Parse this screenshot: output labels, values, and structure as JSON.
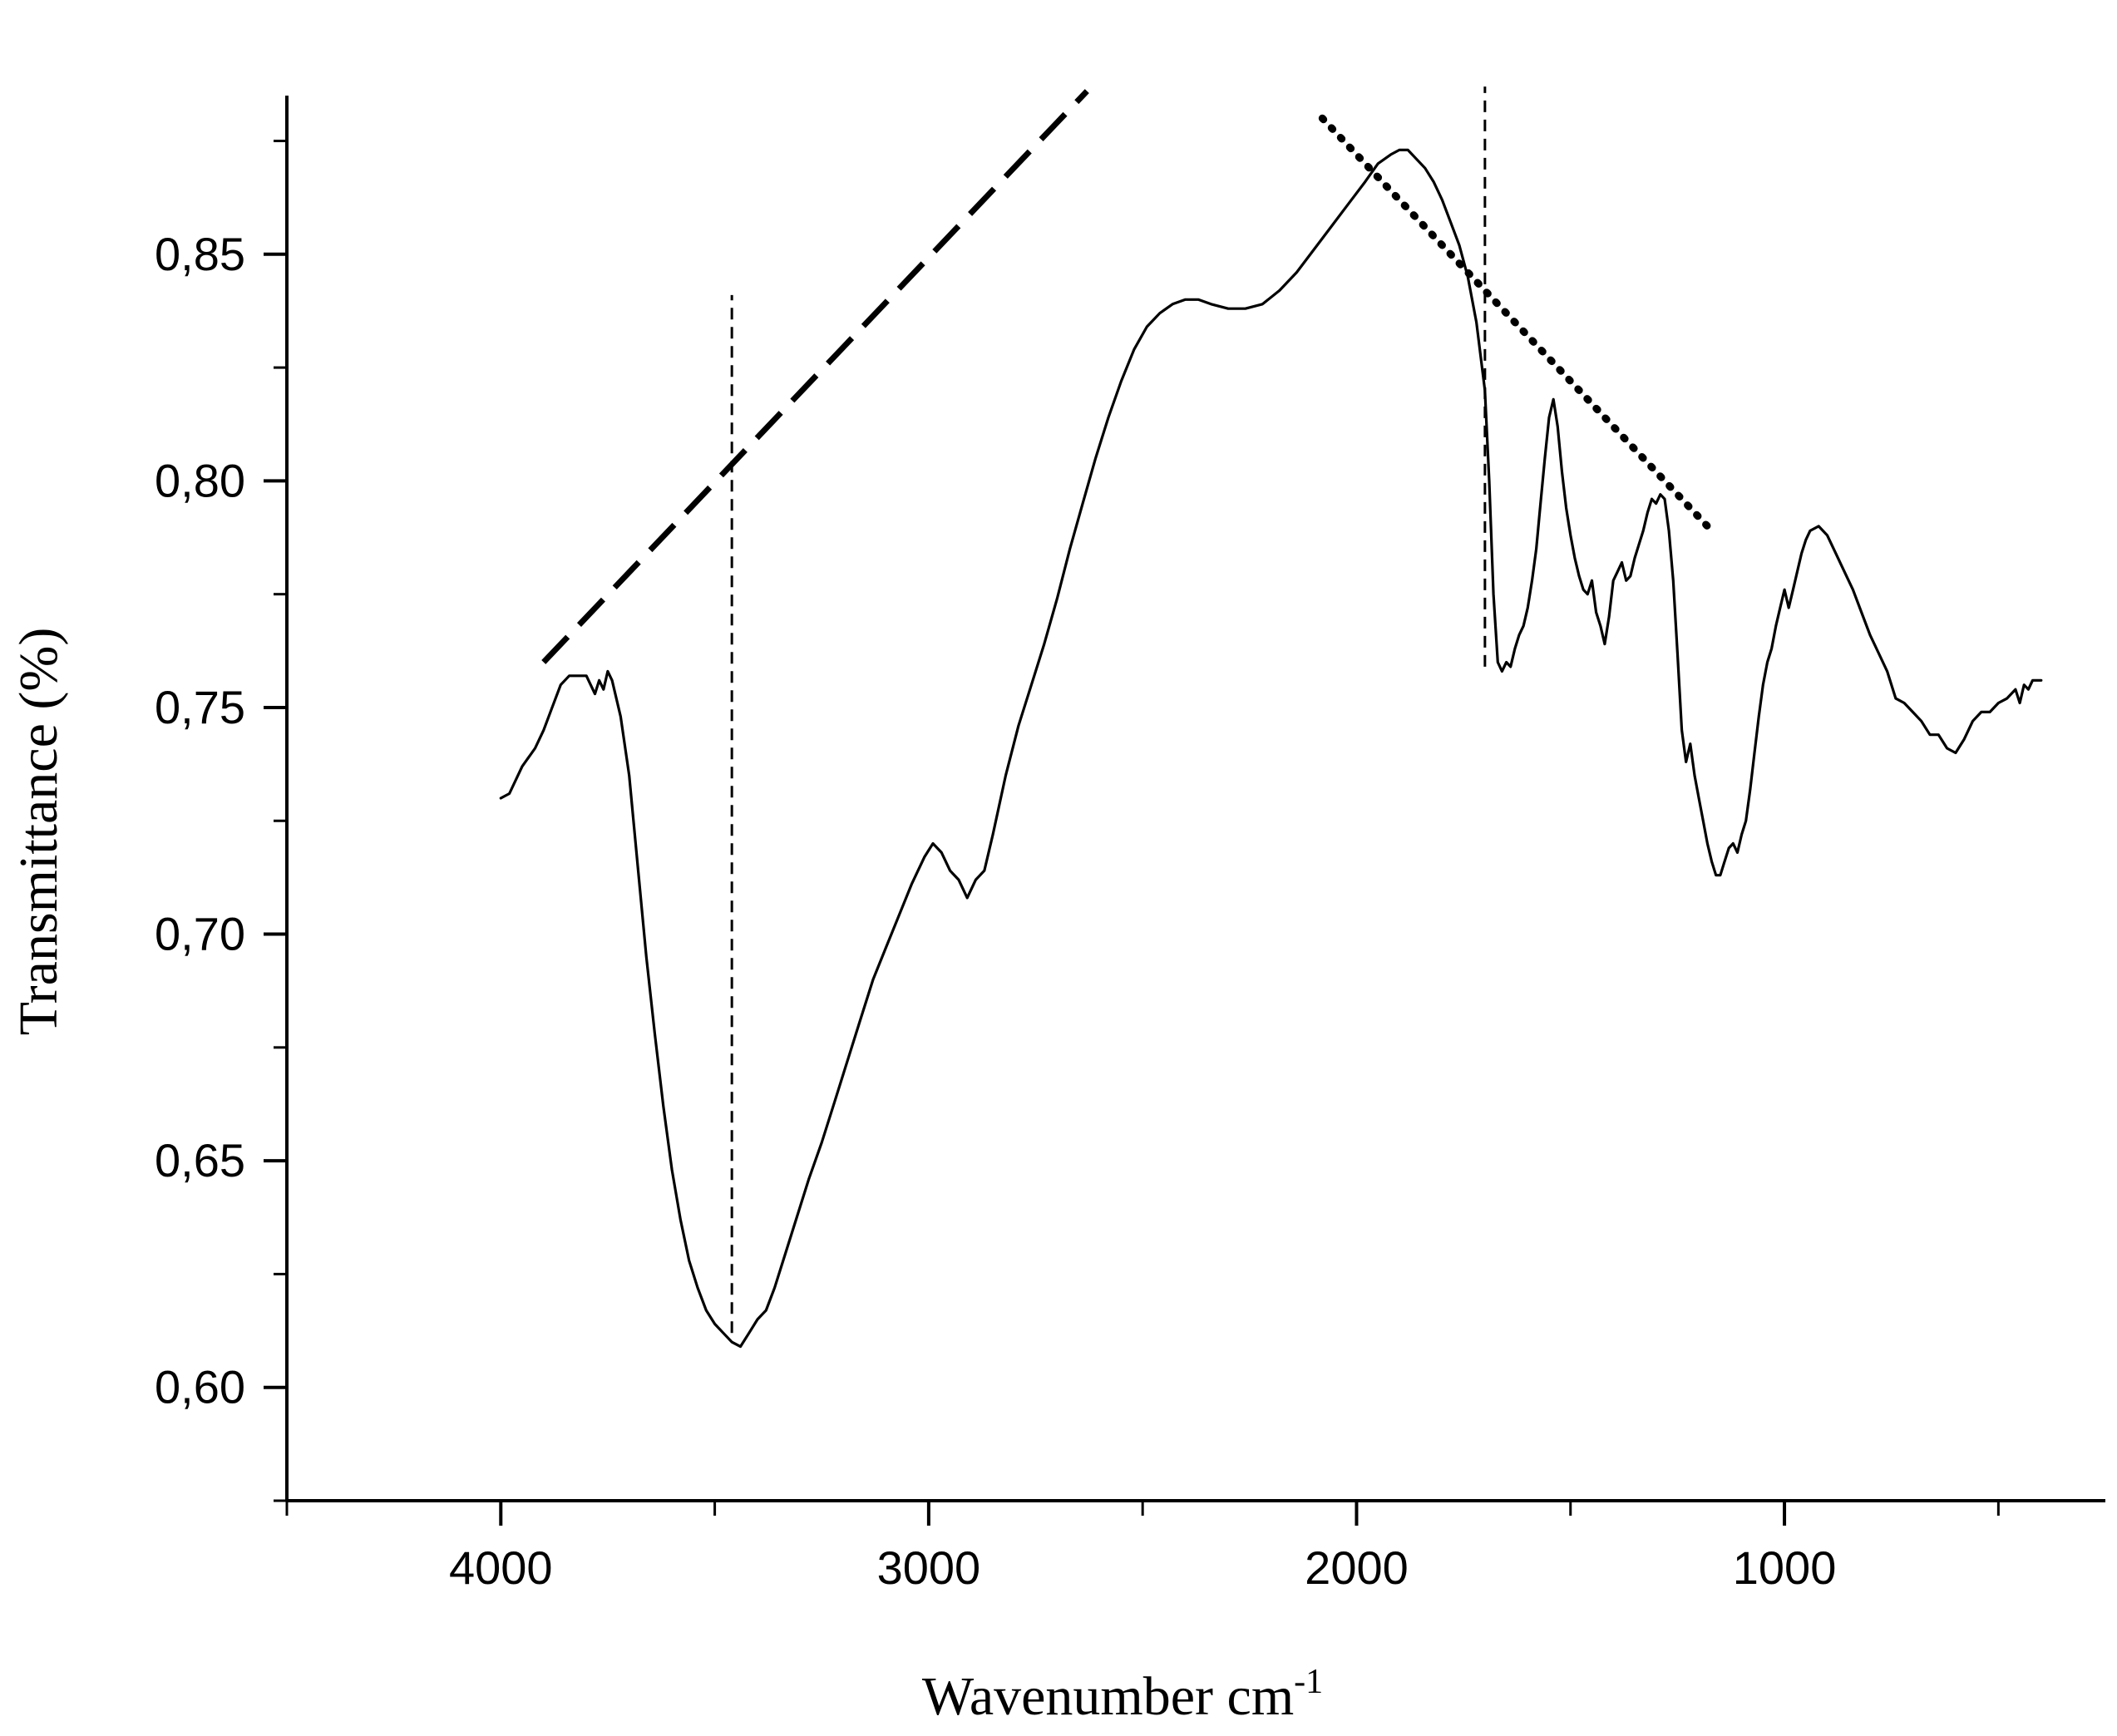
{
  "chart_data": {
    "type": "line",
    "title": "",
    "xlabel": "Wavenumber cm",
    "xlabel_superscript": "-1",
    "ylabel": "Transmittance (%)",
    "xlim": [
      4500,
      250
    ],
    "ylim": [
      0.575,
      0.885
    ],
    "x_reversed": true,
    "grid": false,
    "legend": "none",
    "line_color": "#000000",
    "x_ticks": [
      {
        "value": 4000,
        "label": "4000"
      },
      {
        "value": 3000,
        "label": "3000"
      },
      {
        "value": 2000,
        "label": "2000"
      },
      {
        "value": 1000,
        "label": "1000"
      }
    ],
    "x_minor_ticks": [
      4500,
      3500,
      2500,
      1500,
      500
    ],
    "y_ticks": [
      {
        "value": 0.6,
        "label": "0,60"
      },
      {
        "value": 0.65,
        "label": "0,65"
      },
      {
        "value": 0.7,
        "label": "0,70"
      },
      {
        "value": 0.75,
        "label": "0,75"
      },
      {
        "value": 0.8,
        "label": "0,80"
      },
      {
        "value": 0.85,
        "label": "0,85"
      }
    ],
    "y_minor_ticks": [
      0.575,
      0.625,
      0.675,
      0.725,
      0.775,
      0.825,
      0.875
    ],
    "series": [
      {
        "points": [
          [
            4000,
            0.73
          ],
          [
            3980,
            0.731
          ],
          [
            3950,
            0.737
          ],
          [
            3920,
            0.741
          ],
          [
            3900,
            0.745
          ],
          [
            3880,
            0.75
          ],
          [
            3860,
            0.755
          ],
          [
            3840,
            0.757
          ],
          [
            3820,
            0.757
          ],
          [
            3800,
            0.757
          ],
          [
            3780,
            0.753
          ],
          [
            3770,
            0.756
          ],
          [
            3760,
            0.754
          ],
          [
            3750,
            0.758
          ],
          [
            3740,
            0.756
          ],
          [
            3720,
            0.748
          ],
          [
            3700,
            0.735
          ],
          [
            3680,
            0.715
          ],
          [
            3660,
            0.695
          ],
          [
            3640,
            0.678
          ],
          [
            3620,
            0.662
          ],
          [
            3600,
            0.648
          ],
          [
            3580,
            0.637
          ],
          [
            3560,
            0.628
          ],
          [
            3540,
            0.622
          ],
          [
            3520,
            0.617
          ],
          [
            3500,
            0.614
          ],
          [
            3480,
            0.612
          ],
          [
            3460,
            0.61
          ],
          [
            3440,
            0.609
          ],
          [
            3420,
            0.612
          ],
          [
            3400,
            0.615
          ],
          [
            3380,
            0.617
          ],
          [
            3360,
            0.622
          ],
          [
            3340,
            0.628
          ],
          [
            3320,
            0.634
          ],
          [
            3300,
            0.64
          ],
          [
            3280,
            0.646
          ],
          [
            3250,
            0.654
          ],
          [
            3220,
            0.663
          ],
          [
            3190,
            0.672
          ],
          [
            3160,
            0.681
          ],
          [
            3130,
            0.69
          ],
          [
            3100,
            0.697
          ],
          [
            3070,
            0.704
          ],
          [
            3040,
            0.711
          ],
          [
            3010,
            0.717
          ],
          [
            2990,
            0.72
          ],
          [
            2970,
            0.718
          ],
          [
            2950,
            0.714
          ],
          [
            2930,
            0.712
          ],
          [
            2910,
            0.708
          ],
          [
            2890,
            0.712
          ],
          [
            2870,
            0.714
          ],
          [
            2850,
            0.722
          ],
          [
            2820,
            0.735
          ],
          [
            2790,
            0.746
          ],
          [
            2760,
            0.755
          ],
          [
            2730,
            0.764
          ],
          [
            2700,
            0.774
          ],
          [
            2670,
            0.785
          ],
          [
            2640,
            0.795
          ],
          [
            2610,
            0.805
          ],
          [
            2580,
            0.814
          ],
          [
            2550,
            0.822
          ],
          [
            2520,
            0.829
          ],
          [
            2490,
            0.834
          ],
          [
            2460,
            0.837
          ],
          [
            2430,
            0.839
          ],
          [
            2400,
            0.84
          ],
          [
            2370,
            0.84
          ],
          [
            2340,
            0.839
          ],
          [
            2300,
            0.838
          ],
          [
            2260,
            0.838
          ],
          [
            2220,
            0.839
          ],
          [
            2180,
            0.842
          ],
          [
            2140,
            0.846
          ],
          [
            2100,
            0.851
          ],
          [
            2060,
            0.856
          ],
          [
            2020,
            0.861
          ],
          [
            1980,
            0.866
          ],
          [
            1950,
            0.87
          ],
          [
            1920,
            0.872
          ],
          [
            1900,
            0.873
          ],
          [
            1880,
            0.873
          ],
          [
            1860,
            0.871
          ],
          [
            1840,
            0.869
          ],
          [
            1820,
            0.866
          ],
          [
            1800,
            0.862
          ],
          [
            1780,
            0.857
          ],
          [
            1760,
            0.852
          ],
          [
            1740,
            0.845
          ],
          [
            1720,
            0.835
          ],
          [
            1700,
            0.82
          ],
          [
            1690,
            0.8
          ],
          [
            1680,
            0.775
          ],
          [
            1670,
            0.76
          ],
          [
            1660,
            0.758
          ],
          [
            1650,
            0.76
          ],
          [
            1640,
            0.759
          ],
          [
            1630,
            0.763
          ],
          [
            1620,
            0.766
          ],
          [
            1610,
            0.768
          ],
          [
            1600,
            0.772
          ],
          [
            1590,
            0.778
          ],
          [
            1580,
            0.785
          ],
          [
            1570,
            0.795
          ],
          [
            1560,
            0.805
          ],
          [
            1550,
            0.814
          ],
          [
            1540,
            0.818
          ],
          [
            1530,
            0.812
          ],
          [
            1520,
            0.802
          ],
          [
            1510,
            0.794
          ],
          [
            1500,
            0.788
          ],
          [
            1490,
            0.783
          ],
          [
            1480,
            0.779
          ],
          [
            1470,
            0.776
          ],
          [
            1460,
            0.775
          ],
          [
            1450,
            0.778
          ],
          [
            1440,
            0.771
          ],
          [
            1430,
            0.768
          ],
          [
            1420,
            0.764
          ],
          [
            1410,
            0.77
          ],
          [
            1400,
            0.778
          ],
          [
            1390,
            0.78
          ],
          [
            1380,
            0.782
          ],
          [
            1370,
            0.778
          ],
          [
            1360,
            0.779
          ],
          [
            1350,
            0.783
          ],
          [
            1340,
            0.786
          ],
          [
            1330,
            0.789
          ],
          [
            1320,
            0.793
          ],
          [
            1310,
            0.796
          ],
          [
            1300,
            0.795
          ],
          [
            1290,
            0.797
          ],
          [
            1280,
            0.796
          ],
          [
            1270,
            0.789
          ],
          [
            1260,
            0.778
          ],
          [
            1250,
            0.762
          ],
          [
            1240,
            0.745
          ],
          [
            1230,
            0.738
          ],
          [
            1220,
            0.742
          ],
          [
            1210,
            0.735
          ],
          [
            1200,
            0.73
          ],
          [
            1190,
            0.725
          ],
          [
            1180,
            0.72
          ],
          [
            1170,
            0.716
          ],
          [
            1160,
            0.713
          ],
          [
            1150,
            0.713
          ],
          [
            1140,
            0.716
          ],
          [
            1130,
            0.719
          ],
          [
            1120,
            0.72
          ],
          [
            1110,
            0.718
          ],
          [
            1100,
            0.722
          ],
          [
            1090,
            0.725
          ],
          [
            1080,
            0.732
          ],
          [
            1070,
            0.74
          ],
          [
            1060,
            0.748
          ],
          [
            1050,
            0.755
          ],
          [
            1040,
            0.76
          ],
          [
            1030,
            0.763
          ],
          [
            1020,
            0.768
          ],
          [
            1010,
            0.772
          ],
          [
            1000,
            0.776
          ],
          [
            990,
            0.772
          ],
          [
            980,
            0.776
          ],
          [
            970,
            0.78
          ],
          [
            960,
            0.784
          ],
          [
            950,
            0.787
          ],
          [
            940,
            0.789
          ],
          [
            920,
            0.79
          ],
          [
            900,
            0.788
          ],
          [
            880,
            0.784
          ],
          [
            860,
            0.78
          ],
          [
            840,
            0.776
          ],
          [
            820,
            0.771
          ],
          [
            800,
            0.766
          ],
          [
            780,
            0.762
          ],
          [
            760,
            0.758
          ],
          [
            740,
            0.752
          ],
          [
            720,
            0.751
          ],
          [
            700,
            0.749
          ],
          [
            680,
            0.747
          ],
          [
            660,
            0.744
          ],
          [
            640,
            0.744
          ],
          [
            620,
            0.741
          ],
          [
            600,
            0.74
          ],
          [
            580,
            0.743
          ],
          [
            560,
            0.747
          ],
          [
            540,
            0.749
          ],
          [
            520,
            0.749
          ],
          [
            500,
            0.751
          ],
          [
            480,
            0.752
          ],
          [
            460,
            0.754
          ],
          [
            450,
            0.751
          ],
          [
            440,
            0.755
          ],
          [
            430,
            0.754
          ],
          [
            420,
            0.756
          ],
          [
            400,
            0.756
          ]
        ]
      }
    ],
    "annotations": [
      {
        "kind": "dashed-line",
        "x1": 3900,
        "y1": 0.76,
        "x2": 2630,
        "y2": 0.886
      },
      {
        "kind": "dotted-line",
        "x1": 2080,
        "y1": 0.88,
        "x2": 1170,
        "y2": 0.789
      },
      {
        "kind": "vertical-dashed-line",
        "x": 3460,
        "y1": 0.612,
        "y2": 0.841
      },
      {
        "kind": "vertical-dashed-line",
        "x": 1700,
        "y1": 0.759,
        "y2": 0.887
      }
    ]
  }
}
